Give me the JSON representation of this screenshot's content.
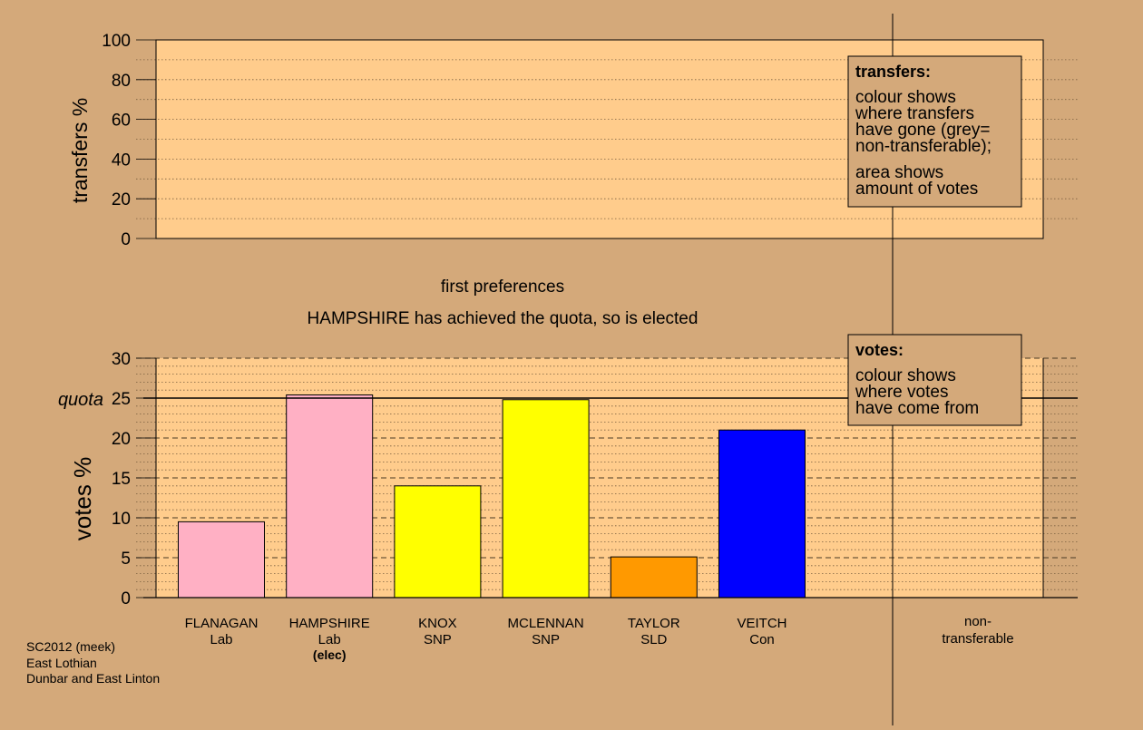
{
  "colors": {
    "background": "#d4a97a",
    "panel": "#ffcc8c",
    "Lab": "#ffb0c4",
    "SNP": "#ffff00",
    "SLD": "#ff9900",
    "Con": "#0000ff"
  },
  "captions": {
    "stage": "first preferences",
    "status": "HAMPSHIRE has achieved the quota, so is elected"
  },
  "source": {
    "line1": "SC2012 (meek)",
    "line2": "East Lothian",
    "line3": "Dunbar and East Linton"
  },
  "transfers_legend": {
    "title": "transfers:",
    "lines1": [
      "colour shows",
      "where transfers",
      "have gone (grey=",
      "non-transferable);"
    ],
    "lines2": [
      "area shows",
      "amount of votes"
    ]
  },
  "votes_legend": {
    "title": "votes:",
    "lines": [
      "colour shows",
      "where votes",
      "have come from"
    ]
  },
  "chart_data": [
    {
      "type": "bar",
      "ylabel": "transfers %",
      "ylim": [
        0,
        100
      ],
      "yticks": [
        0,
        20,
        40,
        60,
        80,
        100
      ],
      "values": []
    },
    {
      "type": "bar",
      "ylabel": "votes %",
      "ylim": [
        0,
        30
      ],
      "yticks": [
        0,
        5,
        10,
        15,
        20,
        25,
        30
      ],
      "quota": {
        "value": 25,
        "label": "quota"
      },
      "categories": [
        {
          "name": "FLANAGAN",
          "party": "Lab",
          "value": 9.5
        },
        {
          "name": "HAMPSHIRE",
          "party": "Lab",
          "value": 25.4,
          "note": "(elec)"
        },
        {
          "name": "KNOX",
          "party": "SNP",
          "value": 14.0
        },
        {
          "name": "MCLENNAN",
          "party": "SNP",
          "value": 24.8
        },
        {
          "name": "TAYLOR",
          "party": "SLD",
          "value": 5.1
        },
        {
          "name": "VEITCH",
          "party": "Con",
          "value": 21.0
        }
      ],
      "nontransferable": {
        "line1": "non-",
        "line2": "transferable",
        "value": 0
      }
    }
  ]
}
